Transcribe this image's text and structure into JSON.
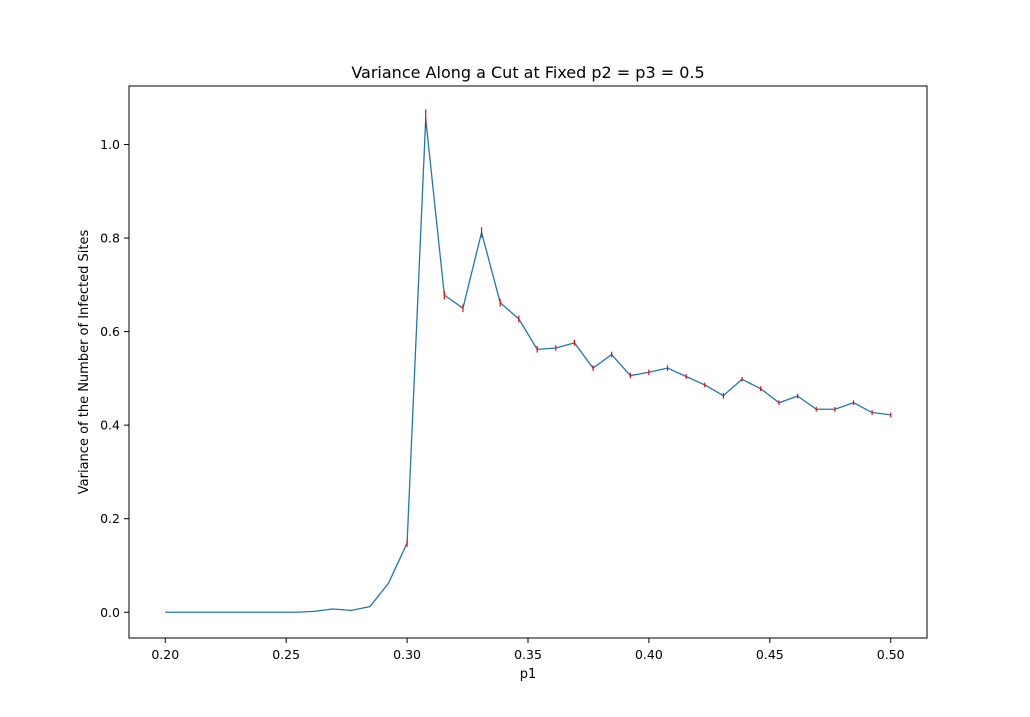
{
  "chart_data": {
    "type": "line",
    "title": "Variance Along a Cut at Fixed p2 = p3 = 0.5",
    "xlabel": "p1",
    "ylabel": "Variance of the Number of Infected Sites",
    "xlim": [
      0.185,
      0.515
    ],
    "ylim": [
      -0.055,
      1.125
    ],
    "x_ticks": [
      "0.20",
      "0.25",
      "0.30",
      "0.35",
      "0.40",
      "0.45",
      "0.50"
    ],
    "y_ticks": [
      "0.0",
      "0.2",
      "0.4",
      "0.6",
      "0.8",
      "1.0"
    ],
    "grid": false,
    "line_color": "#1f77b4",
    "errorbar_color": "#ff0000",
    "series": [
      {
        "x": [
          0.2,
          0.2077,
          0.2154,
          0.2231,
          0.2308,
          0.2385,
          0.2462,
          0.2538,
          0.2615,
          0.2692,
          0.2769,
          0.2846,
          0.2923,
          0.3,
          0.3077,
          0.3154,
          0.3231,
          0.3308,
          0.3385,
          0.3462,
          0.3538,
          0.3615,
          0.3692,
          0.3769,
          0.3846,
          0.3923,
          0.4,
          0.4077,
          0.4154,
          0.4231,
          0.4308,
          0.4385,
          0.4462,
          0.4538,
          0.4615,
          0.4692,
          0.4769,
          0.4846,
          0.4923,
          0.5
        ],
        "y": [
          0.0,
          0.0,
          0.0,
          0.0,
          0.0,
          0.0,
          0.0,
          0.0,
          0.002,
          0.007,
          0.004,
          0.012,
          0.062,
          0.148,
          1.055,
          0.678,
          0.65,
          0.812,
          0.662,
          0.627,
          0.562,
          0.565,
          0.576,
          0.522,
          0.551,
          0.506,
          0.513,
          0.522,
          0.504,
          0.486,
          0.463,
          0.498,
          0.478,
          0.448,
          0.462,
          0.434,
          0.434,
          0.448,
          0.427,
          0.422
        ],
        "yerr": [
          0,
          0,
          0,
          0,
          0,
          0,
          0,
          0,
          0,
          0,
          0,
          0,
          0,
          0.008,
          0.02,
          0.009,
          0.008,
          0.011,
          0.008,
          0.007,
          0.007,
          0.006,
          0.006,
          0.006,
          0.006,
          0.006,
          0.006,
          0.006,
          0.005,
          0.005,
          0.006,
          0.005,
          0.005,
          0.005,
          0.005,
          0.005,
          0.005,
          0.005,
          0.005,
          0.005
        ]
      }
    ]
  }
}
